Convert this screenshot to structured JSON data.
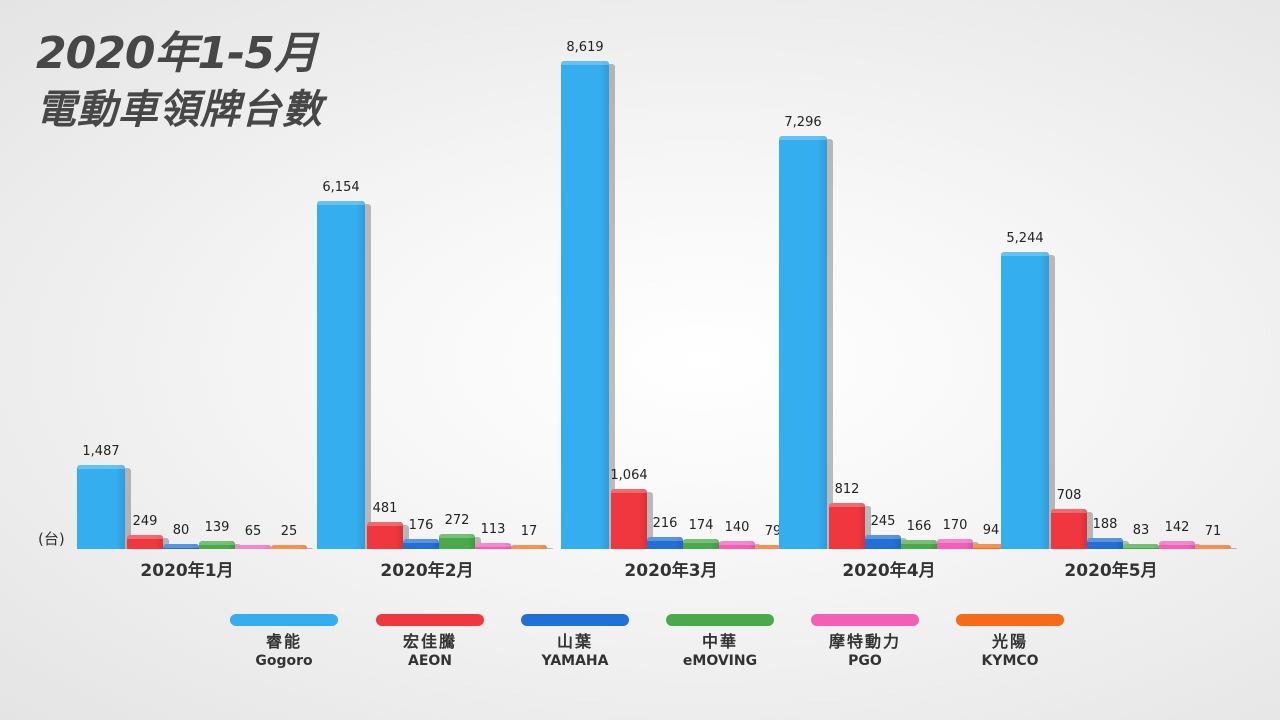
{
  "title": {
    "line1": "2020年1-5月",
    "line2": "電動車領牌台數"
  },
  "unit_label": "(台)",
  "colors": {
    "gogoro": "#35aef0",
    "aeon": "#f0363f",
    "yamaha": "#2270d6",
    "emoving": "#4aa94a",
    "pgo": "#f35fb7",
    "kymco": "#f66a1a"
  },
  "legend": [
    {
      "zh": "睿能",
      "en": "Gogoro",
      "color": "#35aef0"
    },
    {
      "zh": "宏佳騰",
      "en": "AEON",
      "color": "#f0363f"
    },
    {
      "zh": "山葉",
      "en": "YAMAHA",
      "color": "#2270d6"
    },
    {
      "zh": "中華",
      "en": "eMOVING",
      "color": "#4aa94a"
    },
    {
      "zh": "摩特動力",
      "en": "PGO",
      "color": "#f35fb7"
    },
    {
      "zh": "光陽",
      "en": "KYMCO",
      "color": "#f66a1a"
    }
  ],
  "months": [
    {
      "label": "2020年1月",
      "values": [
        "1,487",
        "249",
        "80",
        "139",
        "65",
        "25"
      ]
    },
    {
      "label": "2020年2月",
      "values": [
        "6,154",
        "481",
        "176",
        "272",
        "113",
        "17"
      ]
    },
    {
      "label": "2020年3月",
      "values": [
        "8,619",
        "1,064",
        "216",
        "174",
        "140",
        "79"
      ]
    },
    {
      "label": "2020年4月",
      "values": [
        "7,296",
        "812",
        "245",
        "166",
        "170",
        "94"
      ]
    },
    {
      "label": "2020年5月",
      "values": [
        "5,244",
        "708",
        "188",
        "83",
        "142",
        "71"
      ]
    }
  ],
  "chart_data": {
    "type": "bar",
    "title": "2020年1-5月 電動車領牌台數",
    "xlabel": "",
    "ylabel": "(台)",
    "categories": [
      "2020年1月",
      "2020年2月",
      "2020年3月",
      "2020年4月",
      "2020年5月"
    ],
    "series": [
      {
        "name": "睿能 Gogoro",
        "color": "#35aef0",
        "values": [
          1487,
          6154,
          8619,
          7296,
          5244
        ]
      },
      {
        "name": "宏佳騰 AEON",
        "color": "#f0363f",
        "values": [
          249,
          481,
          1064,
          812,
          708
        ]
      },
      {
        "name": "山葉 YAMAHA",
        "color": "#2270d6",
        "values": [
          80,
          176,
          216,
          245,
          188
        ]
      },
      {
        "name": "中華 eMOVING",
        "color": "#4aa94a",
        "values": [
          139,
          272,
          174,
          166,
          83
        ]
      },
      {
        "name": "摩特動力 PGO",
        "color": "#f35fb7",
        "values": [
          65,
          113,
          140,
          170,
          142
        ]
      },
      {
        "name": "光陽 KYMCO",
        "color": "#f66a1a",
        "values": [
          25,
          17,
          79,
          94,
          71
        ]
      }
    ],
    "data_labels": true,
    "grid": false,
    "legend_position": "bottom",
    "ylim": [
      0,
      9000
    ]
  }
}
